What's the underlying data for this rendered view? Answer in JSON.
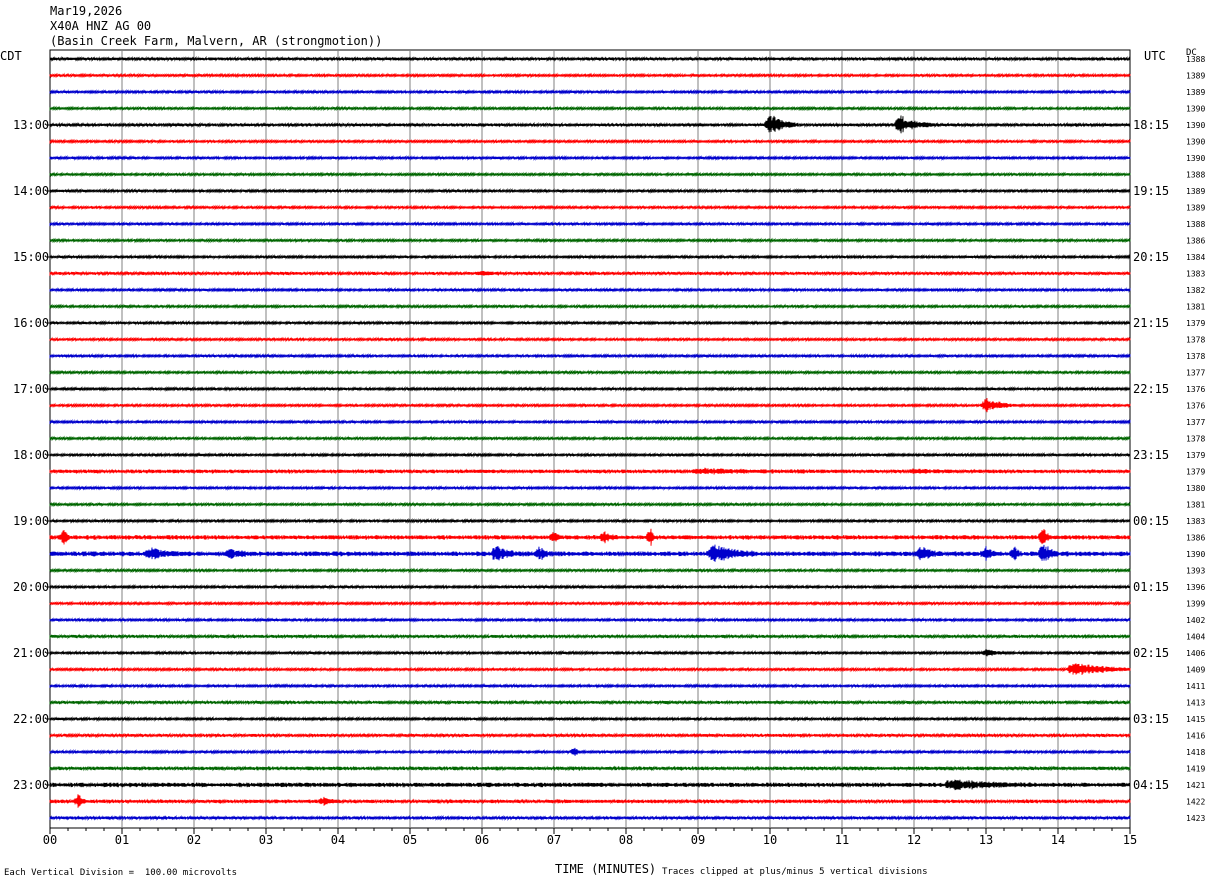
{
  "header": {
    "date": "Mar19,2026",
    "station": "X40A HNZ AG 00",
    "location": "(Basin Creek Farm, Malvern, AR (strongmotion))"
  },
  "axis": {
    "left_label": "CDT",
    "right_label": "UTC",
    "dc_label": "DC",
    "xlabel": "TIME (MINUTES)",
    "x_ticks": [
      "00",
      "01",
      "02",
      "03",
      "04",
      "05",
      "06",
      "07",
      "08",
      "09",
      "10",
      "11",
      "12",
      "13",
      "14",
      "15"
    ],
    "xlim": [
      0,
      15
    ]
  },
  "footer": {
    "vertical_division": "Each Vertical Division =  100.00 microvolts",
    "clipping_note": "Traces clipped at plus/minus 5 vertical divisions"
  },
  "chart_data": {
    "type": "line",
    "title": "",
    "xlabel": "TIME (MINUTES)",
    "ylabel": "",
    "xlim": [
      0,
      15
    ],
    "grid": true,
    "trace_color_cycle": [
      "#000000",
      "#ff0000",
      "#0000cc",
      "#006600"
    ],
    "local_hour_labels": [
      "13:00",
      "14:00",
      "15:00",
      "16:00",
      "17:00",
      "18:00",
      "19:00",
      "20:00",
      "21:00",
      "22:00",
      "23:00"
    ],
    "utc_hour_labels": [
      "18:15",
      "19:15",
      "20:15",
      "21:15",
      "22:15",
      "23:15",
      "00:15",
      "01:15",
      "02:15",
      "03:15",
      "04:15"
    ],
    "dc_values": [
      1388,
      1389,
      1389,
      1390,
      1390,
      1390,
      1390,
      1388,
      1389,
      1389,
      1388,
      1386,
      1384,
      1383,
      1382,
      1381,
      1379,
      1378,
      1378,
      1377,
      1376,
      1376,
      1377,
      1378,
      1379,
      1379,
      1380,
      1381,
      1383,
      1386,
      1390,
      1393,
      1396,
      1399,
      1402,
      1404,
      1406,
      1409,
      1411,
      1413,
      1415,
      1416,
      1418,
      1419,
      1421,
      1422,
      1423
    ],
    "noise_level": [
      1.2,
      1.0,
      1.0,
      1.0,
      1.2,
      1.0,
      1.0,
      1.0,
      1.0,
      1.0,
      1.0,
      1.0,
      1.0,
      1.2,
      1.0,
      1.0,
      1.0,
      1.0,
      1.0,
      1.0,
      1.0,
      1.0,
      1.0,
      1.0,
      1.0,
      1.5,
      1.0,
      1.0,
      1.0,
      1.8,
      2.0,
      1.0,
      1.0,
      1.0,
      1.0,
      1.2,
      1.0,
      1.0,
      1.0,
      1.2,
      1.0,
      1.2,
      1.0,
      1.5,
      1.8,
      1.5,
      1.2
    ],
    "events": [
      {
        "trace": 4,
        "minute": 10.0,
        "amplitude": 10,
        "duration_min": 0.4
      },
      {
        "trace": 4,
        "minute": 11.8,
        "amplitude": 8,
        "duration_min": 0.5
      },
      {
        "trace": 13,
        "minute": 6.0,
        "amplitude": 2,
        "duration_min": 0.3
      },
      {
        "trace": 21,
        "minute": 13.0,
        "amplitude": 6,
        "duration_min": 0.5
      },
      {
        "trace": 25,
        "minute": 9.0,
        "amplitude": 2,
        "duration_min": 1.5
      },
      {
        "trace": 25,
        "minute": 12.0,
        "amplitude": 1.5,
        "duration_min": 0.6
      },
      {
        "trace": 29,
        "minute": 0.2,
        "amplitude": 6,
        "duration_min": 0.1
      },
      {
        "trace": 29,
        "minute": 7.0,
        "amplitude": 5,
        "duration_min": 0.1
      },
      {
        "trace": 29,
        "minute": 7.7,
        "amplitude": 4,
        "duration_min": 0.2
      },
      {
        "trace": 29,
        "minute": 8.35,
        "amplitude": 8,
        "duration_min": 0.05
      },
      {
        "trace": 29,
        "minute": 13.8,
        "amplitude": 8,
        "duration_min": 0.1
      },
      {
        "trace": 30,
        "minute": 1.4,
        "amplitude": 5,
        "duration_min": 0.4
      },
      {
        "trace": 30,
        "minute": 2.5,
        "amplitude": 4,
        "duration_min": 0.3
      },
      {
        "trace": 30,
        "minute": 6.2,
        "amplitude": 7,
        "duration_min": 0.3
      },
      {
        "trace": 30,
        "minute": 6.8,
        "amplitude": 5,
        "duration_min": 0.2
      },
      {
        "trace": 30,
        "minute": 9.2,
        "amplitude": 8,
        "duration_min": 0.6
      },
      {
        "trace": 30,
        "minute": 12.1,
        "amplitude": 6,
        "duration_min": 0.3
      },
      {
        "trace": 30,
        "minute": 13.0,
        "amplitude": 5,
        "duration_min": 0.2
      },
      {
        "trace": 30,
        "minute": 13.4,
        "amplitude": 5,
        "duration_min": 0.1
      },
      {
        "trace": 30,
        "minute": 13.8,
        "amplitude": 12,
        "duration_min": 0.2
      },
      {
        "trace": 36,
        "minute": 13.0,
        "amplitude": 3,
        "duration_min": 0.3
      },
      {
        "trace": 37,
        "minute": 14.2,
        "amplitude": 6,
        "duration_min": 1.0
      },
      {
        "trace": 42,
        "minute": 7.3,
        "amplitude": 5,
        "duration_min": 0.05
      },
      {
        "trace": 44,
        "minute": 12.5,
        "amplitude": 4,
        "duration_min": 1.2
      },
      {
        "trace": 45,
        "minute": 0.4,
        "amplitude": 6,
        "duration_min": 0.1
      },
      {
        "trace": 45,
        "minute": 3.8,
        "amplitude": 3,
        "duration_min": 0.2
      }
    ]
  }
}
